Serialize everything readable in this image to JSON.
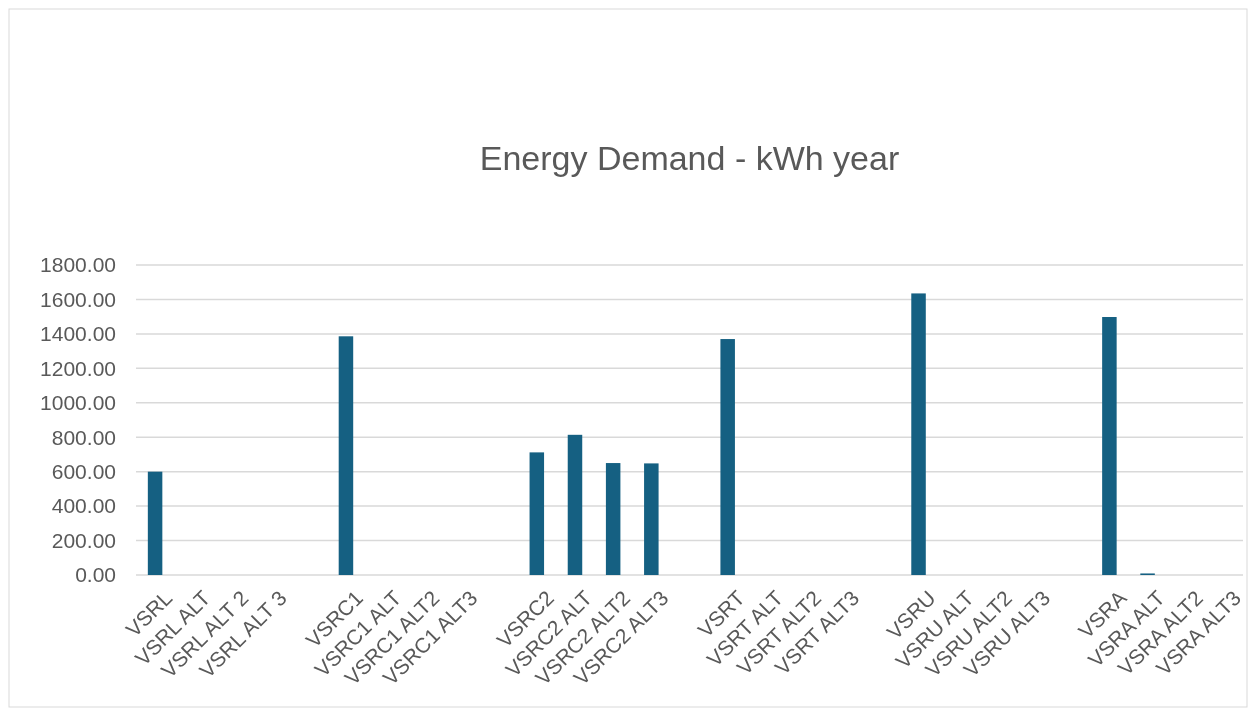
{
  "chart_data": {
    "type": "bar",
    "title": "Energy Demand - kWh year",
    "categories": [
      "VSRL",
      "VSRL ALT",
      "VSRL ALT 2",
      "VSRL ALT 3",
      null,
      "VSRC1",
      "VSRC1 ALT",
      "VSRC1 ALT2",
      "VSRC1 ALT3",
      null,
      "VSRC2",
      "VSRC2 ALT",
      "VSRC2 ALT2",
      "VSRC2 ALT3",
      null,
      "VSRT",
      "VSRT ALT",
      "VSRT ALT2",
      "VSRT ALT3",
      null,
      "VSRU",
      "VSRU ALT",
      "VSRU ALT2",
      "VSRU ALT3",
      null,
      "VSRA",
      "VSRA ALT",
      "VSRA ALT2",
      "VSRA ALT3"
    ],
    "values": [
      600,
      0,
      0,
      0,
      null,
      1386,
      0,
      0,
      0,
      null,
      712,
      814,
      650,
      648,
      null,
      1370,
      0,
      0,
      0,
      null,
      1635,
      0,
      0,
      0,
      null,
      1498,
      9,
      0,
      0
    ],
    "color": "#156082",
    "ylim": [
      0,
      1800
    ],
    "yticks": [
      {
        "value": 0,
        "label": "0.00"
      },
      {
        "value": 200,
        "label": "200.00"
      },
      {
        "value": 400,
        "label": "400.00"
      },
      {
        "value": 600,
        "label": "600.00"
      },
      {
        "value": 800,
        "label": "800.00"
      },
      {
        "value": 1000,
        "label": "1000.00"
      },
      {
        "value": 1200,
        "label": "1200.00"
      },
      {
        "value": 1400,
        "label": "1400.00"
      },
      {
        "value": 1600,
        "label": "1600.00"
      },
      {
        "value": 1800,
        "label": "1800.00"
      }
    ],
    "grid": "y"
  }
}
